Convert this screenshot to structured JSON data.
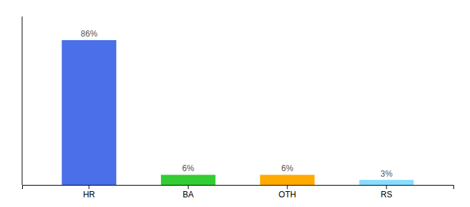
{
  "chart_data": {
    "type": "bar",
    "categories": [
      "HR",
      "BA",
      "OTH",
      "RS"
    ],
    "values": [
      86,
      6,
      6,
      3
    ],
    "value_labels": [
      "86%",
      "6%",
      "6%",
      "3%"
    ],
    "colors": [
      "#4a6fe8",
      "#33cc33",
      "#ffaa00",
      "#88ddff"
    ],
    "ylim": [
      0,
      100
    ],
    "data_labels": true,
    "tick_labels": "x"
  }
}
